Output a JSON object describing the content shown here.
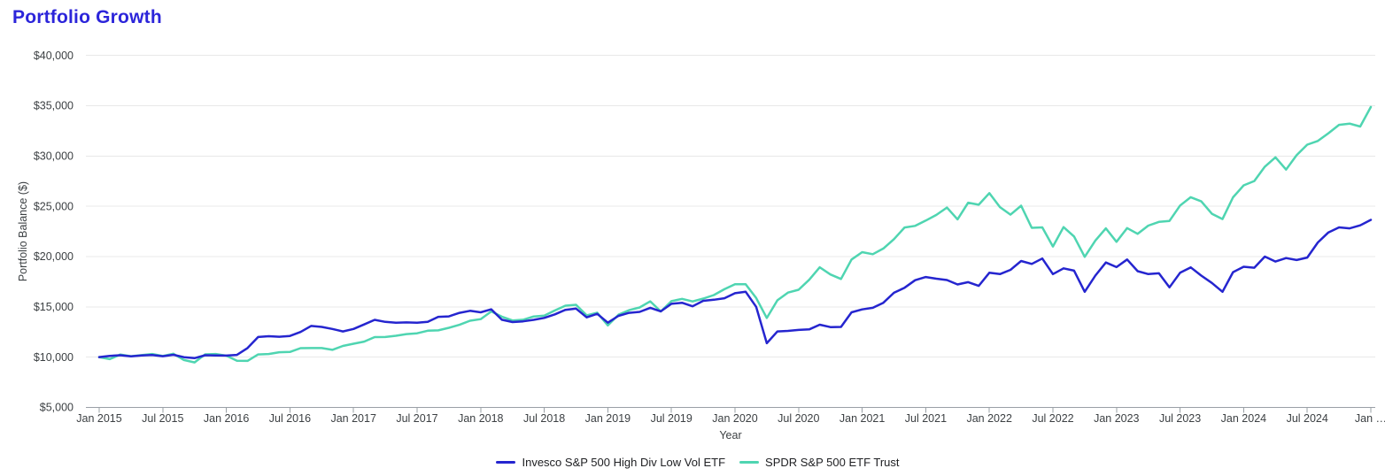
{
  "page": {
    "title": "Portfolio Growth"
  },
  "colors": {
    "title": "#2c25da",
    "invesco_line": "#2525cf",
    "spdr_line": "#4fd5b1",
    "grid": "#e8e8e8",
    "axis": "#9aa0a6",
    "tick_text": "#3c4043",
    "legend_text": "#202124",
    "background": "#ffffff"
  },
  "chart_data": {
    "type": "line",
    "title": "Portfolio Growth",
    "xlabel": "Year",
    "ylabel": "Portfolio Balance ($)",
    "ylim": [
      5000,
      40000
    ],
    "grid": "horizontal",
    "legend_position": "bottom",
    "y_ticks": [
      5000,
      10000,
      15000,
      20000,
      25000,
      30000,
      35000,
      40000
    ],
    "y_tick_labels": [
      "$5,000",
      "$10,000",
      "$15,000",
      "$20,000",
      "$25,000",
      "$30,000",
      "$35,000",
      "$40,000"
    ],
    "x_tick_every_months": 6,
    "x_tick_labels": [
      "Jan 2015",
      "Jul 2015",
      "Jan 2016",
      "Jul 2016",
      "Jan 2017",
      "Jul 2017",
      "Jan 2018",
      "Jul 2018",
      "Jan 2019",
      "Jul 2019",
      "Jan 2020",
      "Jul 2020",
      "Jan 2021",
      "Jul 2021",
      "Jan 2022",
      "Jul 2022",
      "Jan 2023",
      "Jul 2023",
      "Jan 2024",
      "Jul 2024",
      "Jan …"
    ],
    "dates": [
      "2015-01",
      "2015-02",
      "2015-03",
      "2015-04",
      "2015-05",
      "2015-06",
      "2015-07",
      "2015-08",
      "2015-09",
      "2015-10",
      "2015-11",
      "2015-12",
      "2016-01",
      "2016-02",
      "2016-03",
      "2016-04",
      "2016-05",
      "2016-06",
      "2016-07",
      "2016-08",
      "2016-09",
      "2016-10",
      "2016-11",
      "2016-12",
      "2017-01",
      "2017-02",
      "2017-03",
      "2017-04",
      "2017-05",
      "2017-06",
      "2017-07",
      "2017-08",
      "2017-09",
      "2017-10",
      "2017-11",
      "2017-12",
      "2018-01",
      "2018-02",
      "2018-03",
      "2018-04",
      "2018-05",
      "2018-06",
      "2018-07",
      "2018-08",
      "2018-09",
      "2018-10",
      "2018-11",
      "2018-12",
      "2019-01",
      "2019-02",
      "2019-03",
      "2019-04",
      "2019-05",
      "2019-06",
      "2019-07",
      "2019-08",
      "2019-09",
      "2019-10",
      "2019-11",
      "2019-12",
      "2020-01",
      "2020-02",
      "2020-03",
      "2020-04",
      "2020-05",
      "2020-06",
      "2020-07",
      "2020-08",
      "2020-09",
      "2020-10",
      "2020-11",
      "2020-12",
      "2021-01",
      "2021-02",
      "2021-03",
      "2021-04",
      "2021-05",
      "2021-06",
      "2021-07",
      "2021-08",
      "2021-09",
      "2021-10",
      "2021-11",
      "2021-12",
      "2022-01",
      "2022-02",
      "2022-03",
      "2022-04",
      "2022-05",
      "2022-06",
      "2022-07",
      "2022-08",
      "2022-09",
      "2022-10",
      "2022-11",
      "2022-12",
      "2023-01",
      "2023-02",
      "2023-03",
      "2023-04",
      "2023-05",
      "2023-06",
      "2023-07",
      "2023-08",
      "2023-09",
      "2023-10",
      "2023-11",
      "2023-12",
      "2024-01",
      "2024-02",
      "2024-03",
      "2024-04",
      "2024-05",
      "2024-06",
      "2024-07",
      "2024-08",
      "2024-09",
      "2024-10",
      "2024-11",
      "2024-12",
      "2025-01"
    ],
    "series": [
      {
        "name": "Invesco S&P 500 High Div Low Vol ETF",
        "color": "#2525cf",
        "values": [
          10000,
          10120,
          10180,
          10080,
          10160,
          10200,
          10090,
          10230,
          9990,
          9890,
          10180,
          10160,
          10150,
          10220,
          10900,
          12000,
          12080,
          12020,
          12100,
          12500,
          13100,
          13000,
          12800,
          12550,
          12800,
          13250,
          13700,
          13500,
          13420,
          13450,
          13420,
          13500,
          14000,
          14050,
          14400,
          14600,
          14450,
          14750,
          13710,
          13480,
          13550,
          13700,
          13900,
          14250,
          14700,
          14820,
          13950,
          14300,
          13420,
          14100,
          14400,
          14500,
          14900,
          14550,
          15300,
          15400,
          15050,
          15600,
          15700,
          15850,
          16350,
          16500,
          15000,
          11380,
          12550,
          12600,
          12700,
          12750,
          13220,
          12980,
          13000,
          14450,
          14740,
          14900,
          15400,
          16400,
          16900,
          17650,
          17960,
          17800,
          17660,
          17220,
          17450,
          17080,
          18390,
          18250,
          18680,
          19560,
          19270,
          19800,
          18250,
          18830,
          18600,
          16490,
          18100,
          19410,
          18950,
          19710,
          18540,
          18250,
          18330,
          16930,
          18390,
          18920,
          18100,
          17370,
          16490,
          18450,
          18980,
          18890,
          20000,
          19500,
          19850,
          19650,
          19900,
          21400,
          22400,
          22900,
          22800,
          23100,
          23650
        ]
      },
      {
        "name": "SPDR S&P 500 ETF Trust",
        "color": "#4fd5b1",
        "values": [
          10000,
          9800,
          10250,
          10090,
          10190,
          10310,
          10110,
          10330,
          9710,
          9470,
          10270,
          10310,
          10140,
          9630,
          9620,
          10260,
          10310,
          10480,
          10510,
          10890,
          10900,
          10900,
          10720,
          11110,
          11330,
          11540,
          11990,
          12000,
          12120,
          12290,
          12370,
          12620,
          12660,
          12910,
          13210,
          13620,
          13770,
          14540,
          14020,
          13640,
          13710,
          14040,
          14120,
          14640,
          15110,
          15200,
          14150,
          14420,
          13150,
          14210,
          14660,
          14940,
          15540,
          14540,
          15560,
          15790,
          15530,
          15820,
          16170,
          16750,
          17240,
          17240,
          15880,
          13890,
          15650,
          16410,
          16700,
          17690,
          18930,
          18220,
          17770,
          19710,
          20440,
          20230,
          20800,
          21730,
          22890,
          23050,
          23580,
          24140,
          24870,
          23700,
          25360,
          25150,
          26310,
          24920,
          24170,
          25060,
          22860,
          22900,
          21000,
          22930,
          21990,
          19970,
          21590,
          22800,
          21470,
          22830,
          22260,
          23080,
          23450,
          23540,
          25070,
          25900,
          25490,
          24260,
          23730,
          25890,
          27080,
          27510,
          28940,
          29870,
          28650,
          30080,
          31130,
          31500,
          32260,
          33100,
          33220,
          32930,
          34880
        ]
      }
    ]
  }
}
